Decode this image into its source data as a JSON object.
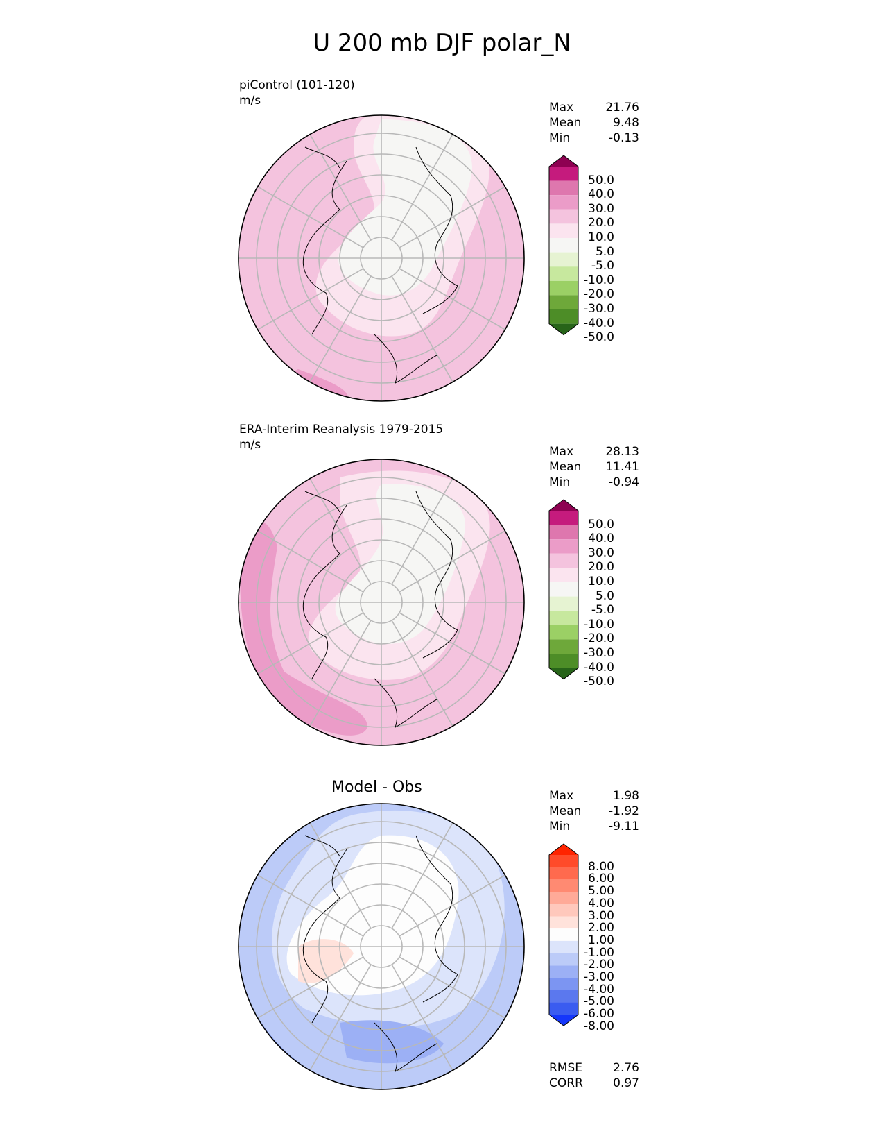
{
  "title": "U 200 mb DJF polar_N",
  "panels": [
    {
      "id": "test",
      "title": "piControl (101-120)",
      "units": "m/s",
      "stats": [
        {
          "label": "Max",
          "value": "21.76"
        },
        {
          "label": "Mean",
          "value": "9.48"
        },
        {
          "label": "Min",
          "value": "-0.13"
        }
      ]
    },
    {
      "id": "ref",
      "title": "ERA-Interim Reanalysis 1979-2015",
      "units": "m/s",
      "stats": [
        {
          "label": "Max",
          "value": "28.13"
        },
        {
          "label": "Mean",
          "value": "11.41"
        },
        {
          "label": "Min",
          "value": "-0.94"
        }
      ]
    },
    {
      "id": "diff",
      "title": "Model - Obs",
      "units": "",
      "stats": [
        {
          "label": "Max",
          "value": "1.98"
        },
        {
          "label": "Mean",
          "value": "-1.92"
        },
        {
          "label": "Min",
          "value": "-9.11"
        }
      ],
      "metrics": [
        {
          "label": "RMSE",
          "value": "2.76"
        },
        {
          "label": "CORR",
          "value": "0.97"
        }
      ]
    }
  ],
  "colorbars": {
    "main": {
      "labels": [
        "50.0",
        "40.0",
        "30.0",
        "20.0",
        "10.0",
        "5.0",
        "-5.0",
        "-10.0",
        "-20.0",
        "-30.0",
        "-40.0",
        "-50.0"
      ],
      "colors": [
        "#8e0152",
        "#c51b7d",
        "#de77ae",
        "#eb9cc8",
        "#f4c3de",
        "#fbe4ef",
        "#f6f6f4",
        "#e6f3d2",
        "#c7e89e",
        "#9bd065",
        "#6ea83a",
        "#4d8d27",
        "#276419"
      ]
    },
    "diff": {
      "labels": [
        "8.00",
        "6.00",
        "5.00",
        "4.00",
        "3.00",
        "2.00",
        "1.00",
        "-1.00",
        "-2.00",
        "-3.00",
        "-4.00",
        "-5.00",
        "-6.00",
        "-8.00"
      ],
      "colors": [
        "#ff2400",
        "#ff4b2a",
        "#ff6a4e",
        "#ff8a72",
        "#ffaa98",
        "#ffc8bc",
        "#ffe2db",
        "#fdfdfd",
        "#dce4fb",
        "#bccbf8",
        "#9cb0f5",
        "#7c95f2",
        "#5b78ee",
        "#3a5cf0",
        "#1436fb"
      ]
    }
  },
  "chart_data": [
    {
      "type": "heatmap",
      "projection": "north polar stereographic",
      "title": "piControl (101-120)",
      "units": "m/s",
      "levels": [
        -50,
        -40,
        -30,
        -20,
        -10,
        -5,
        5,
        10,
        20,
        30,
        40,
        50
      ],
      "stats": {
        "max": 21.76,
        "mean": 9.48,
        "min": -0.13
      }
    },
    {
      "type": "heatmap",
      "projection": "north polar stereographic",
      "title": "ERA-Interim Reanalysis 1979-2015",
      "units": "m/s",
      "levels": [
        -50,
        -40,
        -30,
        -20,
        -10,
        -5,
        5,
        10,
        20,
        30,
        40,
        50
      ],
      "stats": {
        "max": 28.13,
        "mean": 11.41,
        "min": -0.94
      }
    },
    {
      "type": "heatmap",
      "projection": "north polar stereographic",
      "title": "Model - Obs",
      "levels": [
        -8,
        -6,
        -5,
        -4,
        -3,
        -2,
        -1,
        1,
        2,
        3,
        4,
        5,
        6,
        8
      ],
      "stats": {
        "max": 1.98,
        "mean": -1.92,
        "min": -9.11,
        "rmse": 2.76,
        "corr": 0.97
      }
    }
  ]
}
